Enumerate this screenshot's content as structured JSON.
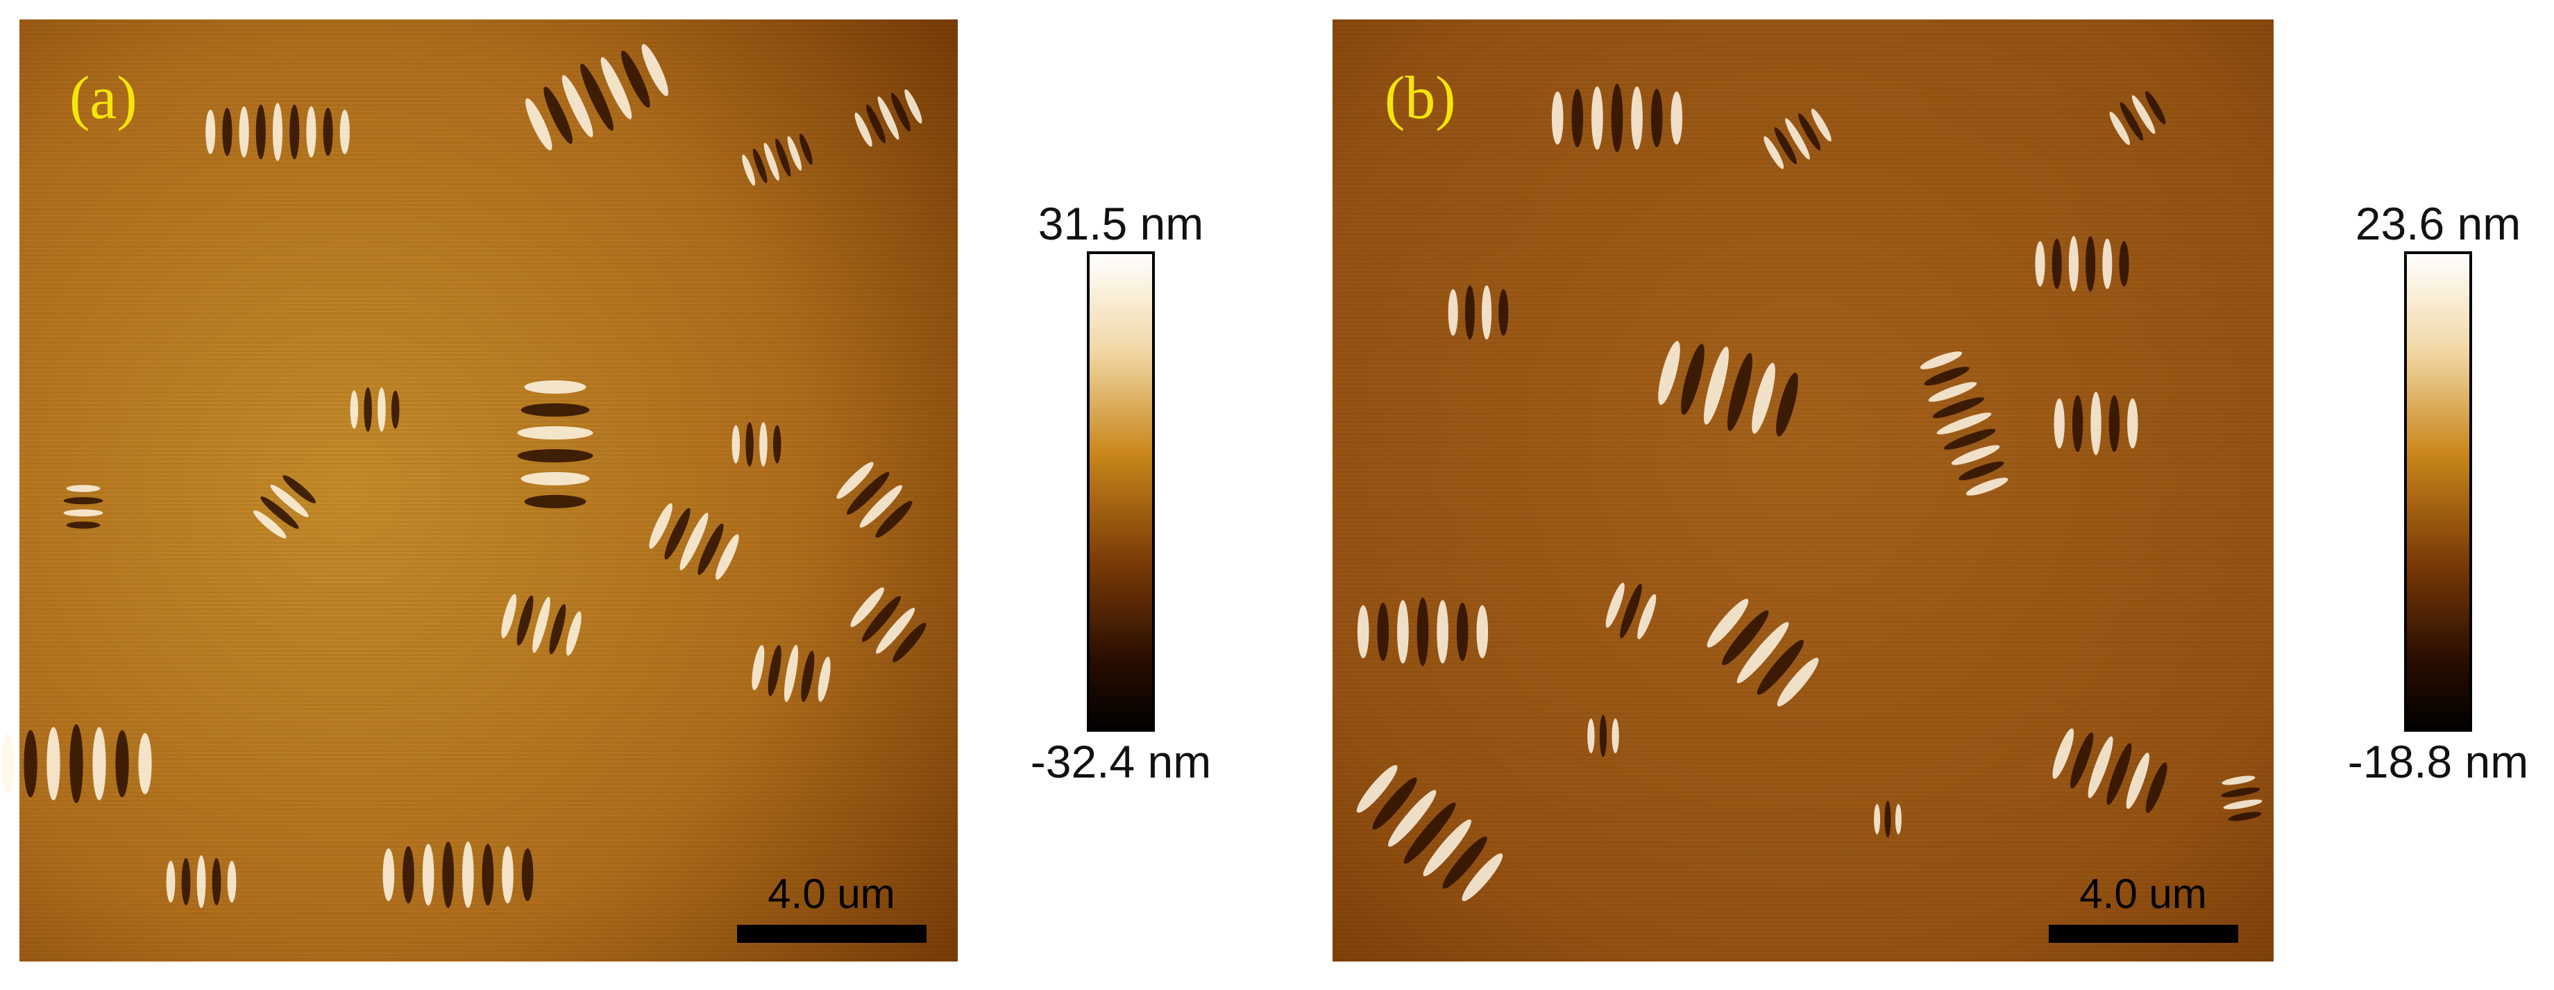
{
  "panels": [
    {
      "label": "(a)",
      "colorbar": {
        "max": "31.5 nm",
        "min": "-32.4 nm"
      },
      "scale_bar": "4.0 um"
    },
    {
      "label": "(b)",
      "colorbar": {
        "max": "23.6 nm",
        "min": "-18.8 nm"
      },
      "scale_bar": "4.0 um"
    }
  ]
}
